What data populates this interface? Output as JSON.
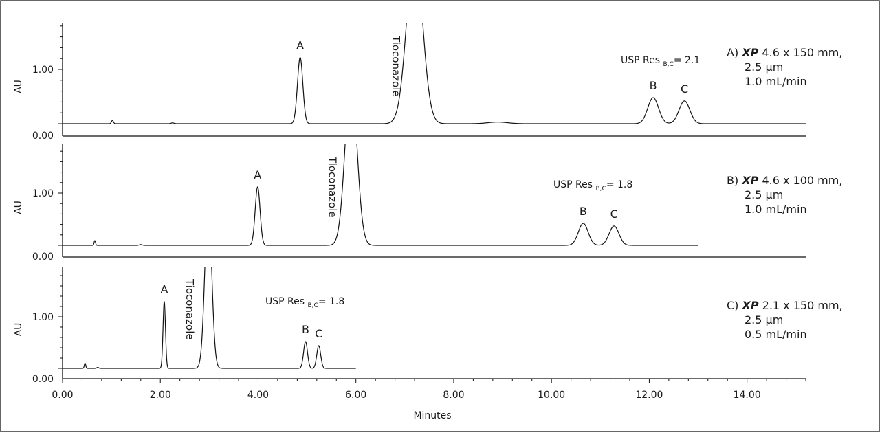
{
  "chart_data": {
    "type": "line",
    "x_label": "Minutes",
    "x_range": [
      0,
      15.2
    ],
    "x_ticks": [
      "0.00",
      "2.00",
      "4.00",
      "6.00",
      "8.00",
      "10.00",
      "12.00",
      "14.00"
    ],
    "y_label": "AU",
    "y_ticks": [
      "0.00",
      "1.00"
    ],
    "y_range": [
      0,
      1.8
    ],
    "panels": [
      {
        "id": "A",
        "caption_prefix": "A)",
        "caption_brand": "XP",
        "caption_lines": [
          "4.6 x 150 mm,",
          "2.5 μm",
          "1.0 mL/min"
        ],
        "x_end": 15.2,
        "baseline": 0.0,
        "resolution_label": "USP Res",
        "resolution_sub": "B,C",
        "resolution_value": "= 2.1",
        "peaks": [
          {
            "label": "",
            "rt": 1.02,
            "height": 0.06,
            "width": 0.02
          },
          {
            "label": "",
            "rt": 2.25,
            "height": 0.015,
            "width": 0.03
          },
          {
            "label": "A",
            "rt": 4.86,
            "height": 1.22,
            "width": 0.055
          },
          {
            "label": "Tioconazole",
            "rt": 7.2,
            "height": 3.2,
            "width": 0.16
          },
          {
            "label": "",
            "rt": 8.9,
            "height": 0.03,
            "width": 0.2
          },
          {
            "label": "B",
            "rt": 12.08,
            "height": 0.48,
            "width": 0.11
          },
          {
            "label": "C",
            "rt": 12.72,
            "height": 0.42,
            "width": 0.11
          }
        ]
      },
      {
        "id": "B",
        "caption_prefix": "B)",
        "caption_brand": "XP",
        "caption_lines": [
          "4.6 x 100 mm,",
          "2.5 μm",
          "1.0 mL/min"
        ],
        "x_end": 13.0,
        "baseline": 0.0,
        "resolution_label": "USP Res",
        "resolution_sub": "B,C",
        "resolution_value": "= 1.8",
        "peaks": [
          {
            "label": "",
            "rt": 0.66,
            "height": 0.09,
            "width": 0.015
          },
          {
            "label": "",
            "rt": 1.6,
            "height": 0.015,
            "width": 0.03
          },
          {
            "label": "A",
            "rt": 3.99,
            "height": 1.12,
            "width": 0.05
          },
          {
            "label": "Tioconazole",
            "rt": 5.9,
            "height": 3.2,
            "width": 0.12
          },
          {
            "label": "B",
            "rt": 10.65,
            "height": 0.42,
            "width": 0.1
          },
          {
            "label": "C",
            "rt": 11.28,
            "height": 0.37,
            "width": 0.1
          }
        ]
      },
      {
        "id": "C",
        "caption_prefix": "C)",
        "caption_brand": "XP",
        "caption_lines": [
          "2.1 x 150 mm,",
          "2.5 μm",
          "0.5 mL/min"
        ],
        "x_end": 6.0,
        "baseline": 0.0,
        "resolution_label": "USP Res",
        "resolution_sub": "B,C",
        "resolution_value": "= 1.8",
        "peaks": [
          {
            "label": "",
            "rt": 0.46,
            "height": 0.1,
            "width": 0.015
          },
          {
            "label": "",
            "rt": 0.72,
            "height": 0.02,
            "width": 0.02
          },
          {
            "label": "A",
            "rt": 2.08,
            "height": 1.3,
            "width": 0.025
          },
          {
            "label": "Tioconazole",
            "rt": 2.98,
            "height": 3.2,
            "width": 0.07
          },
          {
            "label": "B",
            "rt": 4.97,
            "height": 0.52,
            "width": 0.04
          },
          {
            "label": "C",
            "rt": 5.24,
            "height": 0.44,
            "width": 0.04
          }
        ]
      }
    ]
  }
}
